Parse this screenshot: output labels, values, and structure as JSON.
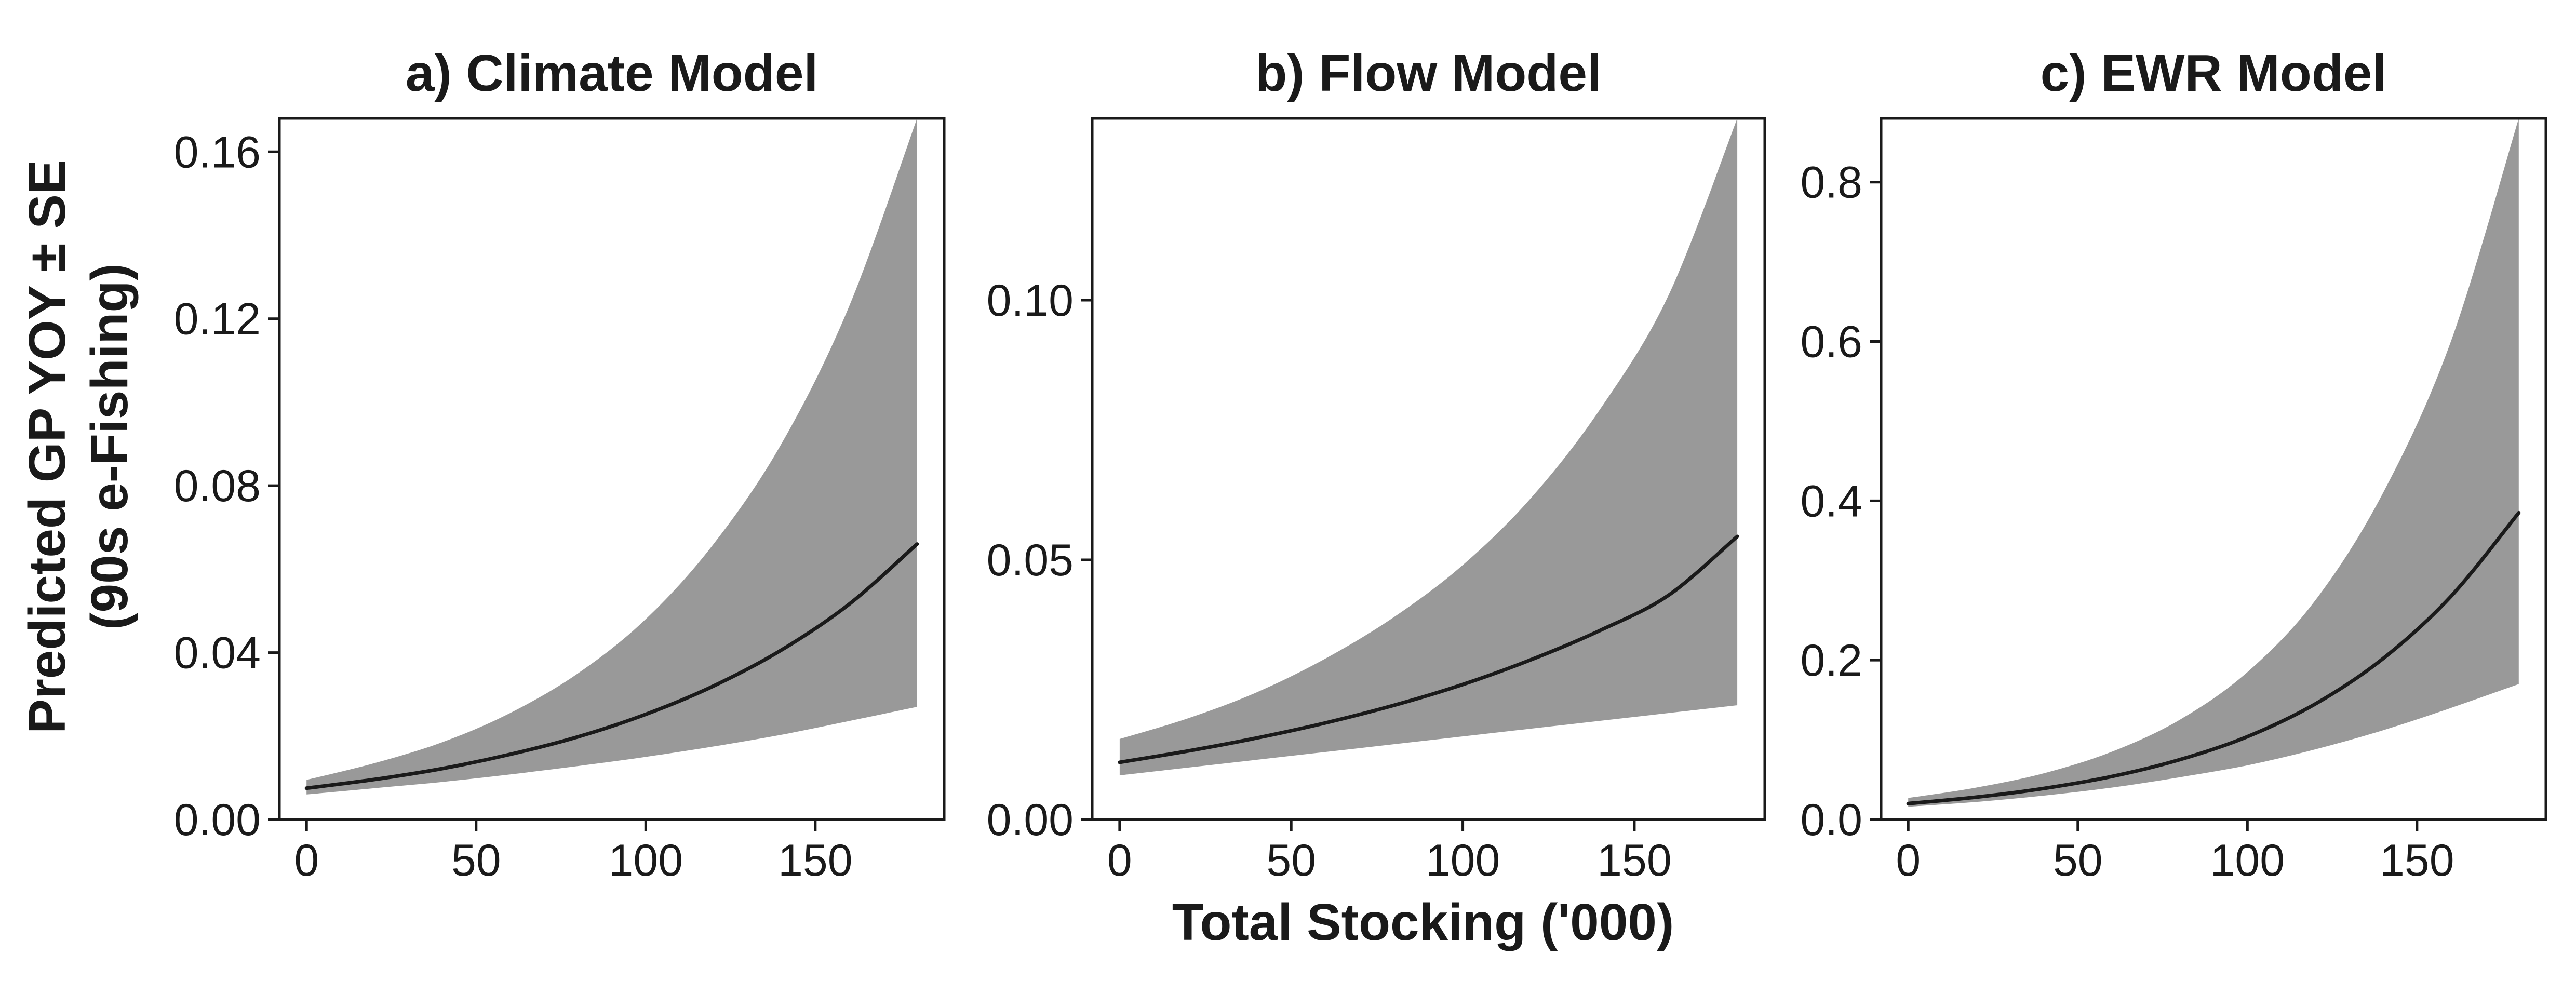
{
  "chart_data": [
    {
      "type": "line",
      "title": "a) Climate Model",
      "xlabel": "Total Stocking ('000)",
      "ylabel": "Predicted GP YOY ± SE (90s e-Fishing)",
      "x": [
        0,
        20,
        40,
        60,
        80,
        100,
        120,
        140,
        160,
        180
      ],
      "series": [
        {
          "role": "mean",
          "values": [
            0.0075,
            0.0096,
            0.0122,
            0.0156,
            0.0198,
            0.0252,
            0.032,
            0.0406,
            0.0516,
            0.066
          ]
        },
        {
          "role": "upper_se",
          "values": [
            0.0095,
            0.0135,
            0.0185,
            0.0255,
            0.035,
            0.048,
            0.066,
            0.09,
            0.123,
            0.168
          ]
        },
        {
          "role": "lower_se",
          "values": [
            0.006,
            0.0075,
            0.009,
            0.0108,
            0.0128,
            0.015,
            0.0175,
            0.0203,
            0.0236,
            0.027
          ]
        }
      ],
      "xlim": [
        -8,
        188
      ],
      "ylim": [
        0,
        0.168
      ],
      "xticks": [
        "0",
        "50",
        "100",
        "150"
      ],
      "xtick_values": [
        0,
        50,
        100,
        150
      ],
      "yticks": [
        "0.00",
        "0.04",
        "0.08",
        "0.12",
        "0.16"
      ],
      "ytick_values": [
        0,
        0.04,
        0.08,
        0.12,
        0.16
      ]
    },
    {
      "type": "line",
      "title": "b) Flow Model",
      "xlabel": "Total Stocking ('000)",
      "ylabel": "Predicted GP YOY ± SE (90s e-Fishing)",
      "x": [
        0,
        20,
        40,
        60,
        80,
        100,
        120,
        140,
        160,
        180
      ],
      "series": [
        {
          "role": "mean",
          "values": [
            0.011,
            0.0132,
            0.0157,
            0.0186,
            0.022,
            0.026,
            0.0308,
            0.0364,
            0.0432,
            0.0545
          ]
        },
        {
          "role": "upper_se",
          "values": [
            0.0155,
            0.0195,
            0.0245,
            0.031,
            0.039,
            0.049,
            0.062,
            0.079,
            0.101,
            0.135
          ]
        },
        {
          "role": "lower_se",
          "values": [
            0.0085,
            0.01,
            0.0115,
            0.013,
            0.0145,
            0.016,
            0.0175,
            0.019,
            0.0205,
            0.022
          ]
        }
      ],
      "xlim": [
        -8,
        188
      ],
      "ylim": [
        0,
        0.135
      ],
      "xticks": [
        "0",
        "50",
        "100",
        "150"
      ],
      "xtick_values": [
        0,
        50,
        100,
        150
      ],
      "yticks": [
        "0.00",
        "0.05",
        "0.10"
      ],
      "ytick_values": [
        0,
        0.05,
        0.1
      ]
    },
    {
      "type": "line",
      "title": "c) EWR Model",
      "xlabel": "Total Stocking ('000)",
      "ylabel": "Predicted GP YOY ± SE (90s e-Fishing)",
      "x": [
        0,
        20,
        40,
        60,
        80,
        100,
        120,
        140,
        160,
        180
      ],
      "series": [
        {
          "role": "mean",
          "values": [
            0.02,
            0.028,
            0.039,
            0.054,
            0.075,
            0.104,
            0.145,
            0.202,
            0.28,
            0.385
          ]
        },
        {
          "role": "upper_se",
          "values": [
            0.027,
            0.04,
            0.058,
            0.085,
            0.125,
            0.185,
            0.275,
            0.41,
            0.6,
            0.88
          ]
        },
        {
          "role": "lower_se",
          "values": [
            0.016,
            0.022,
            0.03,
            0.04,
            0.053,
            0.068,
            0.088,
            0.112,
            0.14,
            0.17
          ]
        }
      ],
      "xlim": [
        -8,
        188
      ],
      "ylim": [
        0,
        0.88
      ],
      "xticks": [
        "0",
        "50",
        "100",
        "150"
      ],
      "xtick_values": [
        0,
        50,
        100,
        150
      ],
      "yticks": [
        "0.0",
        "0.2",
        "0.4",
        "0.6",
        "0.8"
      ],
      "ytick_values": [
        0,
        0.2,
        0.4,
        0.6,
        0.8
      ]
    }
  ],
  "figure": {
    "shared_xlabel": "Total Stocking ('000)",
    "ylabel_line1": "Predicted GP YOY ± SE",
    "ylabel_line2": "(90s e-Fishing)",
    "colors": {
      "band": "#999999",
      "line": "#1a1a1a",
      "axis": "#1a1a1a"
    }
  }
}
